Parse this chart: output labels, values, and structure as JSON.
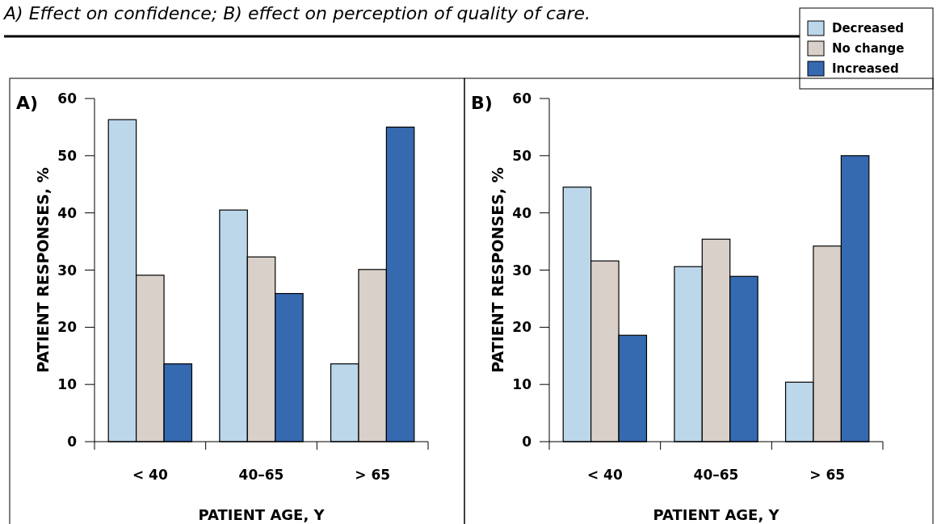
{
  "chart_data": [
    {
      "type": "bar",
      "title": "A) Effect on confidence; B) effect on perception of quality of care.",
      "annotations": [
        "A)"
      ],
      "categories": [
        "< 40",
        "40–65",
        "> 65"
      ],
      "xlabel": "PATIENT AGE, Y",
      "ylabel": "PATIENT RESPONSES, %",
      "ylim": [
        0,
        60
      ],
      "yticks": [
        0,
        10,
        20,
        30,
        40,
        50,
        60
      ],
      "grid": false,
      "legend": "top right",
      "series": [
        {
          "name": "Decreased",
          "color": "#bcd6ea",
          "values": [
            56.3,
            40.5,
            13.6
          ]
        },
        {
          "name": "No change",
          "color": "#d9d0c9",
          "values": [
            29.1,
            32.3,
            30.1
          ]
        },
        {
          "name": "Increased",
          "color": "#3569b0",
          "values": [
            13.6,
            25.9,
            55.0
          ]
        }
      ]
    },
    {
      "type": "bar",
      "annotations": [
        "B)"
      ],
      "categories": [
        "< 40",
        "40–65",
        "> 65"
      ],
      "xlabel": "PATIENT AGE, Y",
      "ylabel": "PATIENT RESPONSES, %",
      "ylim": [
        0,
        60
      ],
      "yticks": [
        0,
        10,
        20,
        30,
        40,
        50,
        60
      ],
      "grid": false,
      "series": [
        {
          "color": "#bcd6ea",
          "values": [
            44.5,
            30.6,
            10.4
          ]
        },
        {
          "color": "#d9d0c9",
          "values": [
            31.6,
            35.4,
            34.2
          ]
        },
        {
          "color": "#3569b0",
          "values": [
            18.6,
            28.9,
            50.0
          ]
        }
      ]
    }
  ]
}
